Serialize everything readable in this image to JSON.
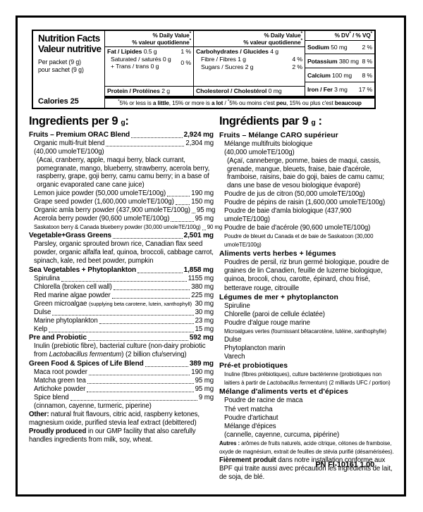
{
  "colors": {
    "ink": "#000000",
    "paper": "#ffffff"
  },
  "nutrition_panel": {
    "title_en": "Nutrition Facts",
    "title_fr": "Valeur nutritive",
    "serving_en": "Per packet (9 g)",
    "serving_fr": "pour sachet (9 g)",
    "calories": "Calories 25",
    "asterisk": "*",
    "dv_header_line1": "% Daily Value",
    "dv_header_line2": "% valeur quotidienne",
    "dv4_part1": "% DV",
    "dv4_part2": " / % VQ",
    "fat_name": "Fat / Lipides",
    "fat_amount": "0.5 g",
    "fat_dv": "1 %",
    "saturated_line": "Saturated / saturés 0 g",
    "trans_line": "+ Trans / trans 0 g",
    "sat_trans_dv": "0 %",
    "protein_name": "Protein / Protéines",
    "protein_amount": "2 g",
    "carb_name": "Carbohydrates / Glucides",
    "carb_amount": "4 g",
    "fibre_name": "Fibre / Fibres 1 g",
    "fibre_dv": "4 %",
    "sugars_name": "Sugars / Sucres 2 g",
    "sugars_dv": "2 %",
    "chol_name": "Cholesterol / Cholestérol",
    "chol_amount": "0 mg",
    "minerals": [
      {
        "name": "Sodium",
        "amount": "50 mg",
        "dv": "2 %"
      },
      {
        "name": "Potassium",
        "amount": "380 mg",
        "dv": "8 %"
      },
      {
        "name": "Calcium",
        "amount": "100 mg",
        "dv": "8 %"
      },
      {
        "name": "Iron / Fer",
        "amount": "3 mg",
        "dv": "17 %"
      }
    ],
    "footnote": {
      "p1": "5% or less is ",
      "b1": "a little",
      "p2": ", 15% or more is ",
      "b2": "a lot",
      "sep": " / ",
      "p3": "5% ou moins c'est ",
      "b3": "peu",
      "p4": ", 15% ou plus c'est ",
      "b4": "beaucoup"
    }
  },
  "ingredients_en": {
    "heading_main": "Ingredients per 9",
    "heading_unit": "g",
    "heading_colon": ":",
    "entries": [
      {
        "text": "Fruits – Premium ORAC Blend",
        "amount": "2,924 mg",
        "bold": true,
        "leader": true
      },
      {
        "text": "Organic multi-fruit blend",
        "amount": "2,304 mg",
        "leader": true,
        "indent": 1
      },
      {
        "text": "(40,000 umoleTE/100g)",
        "indent": 1
      },
      {
        "text": "(Acai, cranberry, apple, maqui berry, black currant, pomegranate, mango, blueberry, strawberry, acerola berry, raspberry, grape, goji berry, camu camu berry; in a base of organic evaporated cane cane juice)",
        "indent": 2
      },
      {
        "text": "Lemon juice powder (50,000 umoleTE/100g)",
        "amount": "190 mg",
        "leader": true,
        "indent": 1
      },
      {
        "text": "Grape seed powder (1,600,000 umoleTE/100g)",
        "amount": "150 mg",
        "leader": true,
        "indent": 1
      },
      {
        "text": "Organic amla berry powder (437,900 umoleTE/100g)",
        "amount": "95 mg",
        "leader": true,
        "indent": 1
      },
      {
        "text": "Acerola berry powder (90,600 umoleTE/100g)",
        "amount": "95 mg",
        "leader": true,
        "indent": 1
      },
      {
        "text": "Saskatoon berry & Canada blueberry powder (30,000 umoleTE/100g)",
        "amount": "90 mg",
        "leader": true,
        "indent": 1,
        "small": true
      },
      {
        "text": "Vegetable+Grass Greens",
        "amount": "2,501 mg",
        "bold": true,
        "leader": true
      },
      {
        "text": "Parsley, organic sprouted brown rice, Canadian flax seed powder, organic alfalfa leaf, quinoa, broccoli, cabbage carrot, spinach, kale, red beet powder, pumpkin",
        "indent": 1
      },
      {
        "text": "Sea Vegetables + Phytoplankton",
        "amount": "1,858 mg",
        "bold": true,
        "leader": true
      },
      {
        "text": "Spirulina",
        "amount": "1155 mg",
        "leader": true,
        "indent": 1
      },
      {
        "text": "Chlorella (broken cell wall)",
        "amount": "380 mg",
        "leader": true,
        "indent": 1
      },
      {
        "text": "Red marine algae powder",
        "amount": "225 mg",
        "leader": true,
        "indent": 1
      },
      {
        "parts": [
          {
            "text": "Green microalgae "
          },
          {
            "text": "(supplying beta carotene, lutein, xanthophyll)",
            "s": true
          }
        ],
        "amount": "30 mg",
        "leader": false,
        "indent": 1
      },
      {
        "text": "Dulse",
        "amount": "30 mg",
        "leader": true,
        "indent": 1
      },
      {
        "text": "Marine phytoplankton",
        "amount": "23 mg",
        "leader": true,
        "indent": 1
      },
      {
        "text": "Kelp",
        "amount": "15 mg",
        "leader": true,
        "indent": 1
      },
      {
        "text": "Pre and Probiotic",
        "amount": "592 mg",
        "bold": true,
        "leader": true
      },
      {
        "parts": [
          {
            "text": "Inulin (prebiotic fibre), bacterial culture (non-dairy probiotic from "
          },
          {
            "text": "Lactobacillus fermentum",
            "i": true
          },
          {
            "text": ") (2 billion cfu/serving)"
          }
        ],
        "indent": 1
      },
      {
        "text": "Green Food & Spices of Life Blend",
        "amount": "389 mg",
        "bold": true,
        "leader": true
      },
      {
        "text": "Maca root powder",
        "amount": "190 mg",
        "leader": true,
        "indent": 1
      },
      {
        "text": "Matcha green tea",
        "amount": "95 mg",
        "leader": true,
        "indent": 1
      },
      {
        "text": "Artichoke powder",
        "amount": "95 mg",
        "leader": true,
        "indent": 1
      },
      {
        "text": "Spice blend",
        "amount": "9 mg",
        "leader": true,
        "indent": 1
      },
      {
        "text": "(cinnamon, cayenne, turmeric, piperine)",
        "indent": 1
      },
      {
        "parts": [
          {
            "text": "Other:",
            "b": true
          },
          {
            "text": " natural fruit flavours, citric acid, raspberry ketones, magnesium oxide, purified stevia leaf extract (debittered)"
          }
        ]
      },
      {
        "parts": [
          {
            "text": "Proudly produced",
            "b": true
          },
          {
            "text": " in our GMP facility that also carefully handles ingredients from milk, soy, wheat."
          }
        ]
      }
    ]
  },
  "ingredients_fr": {
    "heading_main": "Ingrédients par 9",
    "heading_unit": "g",
    "heading_colon": " :",
    "entries": [
      {
        "text": "Fruits – Mélange CARO supérieur",
        "bold": true
      },
      {
        "text": "Mélange multifruits biologique",
        "indent": 1
      },
      {
        "text": "(40,000 umoleTE/100g)",
        "indent": 1
      },
      {
        "text": "(Açaï, canneberge, pomme, baies de maqui, cassis, grenade, mangue, bleuets, fraise, baie d'acérole, framboise, raisins, baie do goji, baies de camu camu; dans une base de vesou biologique évaporé)",
        "indent": 2
      },
      {
        "text": "Poudre de jus de citron (50,000 umoleTE/100g)",
        "indent": 1
      },
      {
        "text": "Poudre de pépins de raisin (1,600,000 umoleTE/100g)",
        "indent": 1
      },
      {
        "text": "Poudre de baie d'amla biologique (437,900 umoleTE/100g)",
        "indent": 1
      },
      {
        "text": "Poudre de baie d'acérole (90,600 umoleTE/100g)",
        "indent": 1
      },
      {
        "text": "Poudre de bleuet du Canada et de baie de Saskatoon (30,000 umoleTE/100g)",
        "indent": 1,
        "small": true
      },
      {
        "text": "Aliments verts herbes + légumes",
        "bold": true
      },
      {
        "text": "Poudres de persil, riz brun germé biologique, poudre de graines de lin Canadien, feuille de luzerne biologique, quinoa, brocoli, chou, carotte, épinard, chou frisé, betterave rouge, citrouille",
        "indent": 1
      },
      {
        "text": "Légumes de mer + phytoplancton",
        "bold": true
      },
      {
        "text": "Spiruline",
        "indent": 1
      },
      {
        "text": "Chlorelle (paroi de cellule éclatée)",
        "indent": 1
      },
      {
        "text": "Poudre d'algue rouge marine",
        "indent": 1
      },
      {
        "text": "Microalgues vertes (fournissant bêtacarotène, lutéine, xanthophylle)",
        "indent": 1,
        "small": true
      },
      {
        "text": "Dulse",
        "indent": 1
      },
      {
        "text": "Phytoplancton marin",
        "indent": 1
      },
      {
        "text": "Varech",
        "indent": 1
      },
      {
        "text": "Pré-et probiotiques",
        "bold": true
      },
      {
        "parts": [
          {
            "text": "Inuline (fibres prébiotiques), culture bactérienne (probiotiques non laitiers à partir de "
          },
          {
            "text": "Lactobacillus fermentum",
            "i": true
          },
          {
            "text": ") (2 milliards UFC / portion)"
          }
        ],
        "indent": 1,
        "small": true
      },
      {
        "text": "Mélange d'aliments verts et d'épices",
        "bold": true
      },
      {
        "text": "Poudre de racine de maca",
        "indent": 1
      },
      {
        "text": "Thé vert matcha",
        "indent": 1
      },
      {
        "text": "Poudre d'artichaut",
        "indent": 1
      },
      {
        "text": "Mélange d'épices",
        "indent": 1
      },
      {
        "text": "(cannelle, cayenne, curcuma, pipérine)",
        "indent": 1
      },
      {
        "parts": [
          {
            "text": "Autres :",
            "b": true
          },
          {
            "text": " arômes de fruits naturels, acide citrique, cétones de framboise, oxyde de magnésium, extrait de feuilles de stévia purifié (désamérisées)."
          }
        ],
        "small": true
      },
      {
        "parts": [
          {
            "text": "Fièrement produit",
            "b": true
          },
          {
            "text": " dans notre installation conforme aux BPF qui traite aussi avec précaution les ingrédients de lait, de soja, de blé."
          }
        ]
      }
    ]
  },
  "footer": {
    "code": "PN FI-10161 1.00"
  }
}
